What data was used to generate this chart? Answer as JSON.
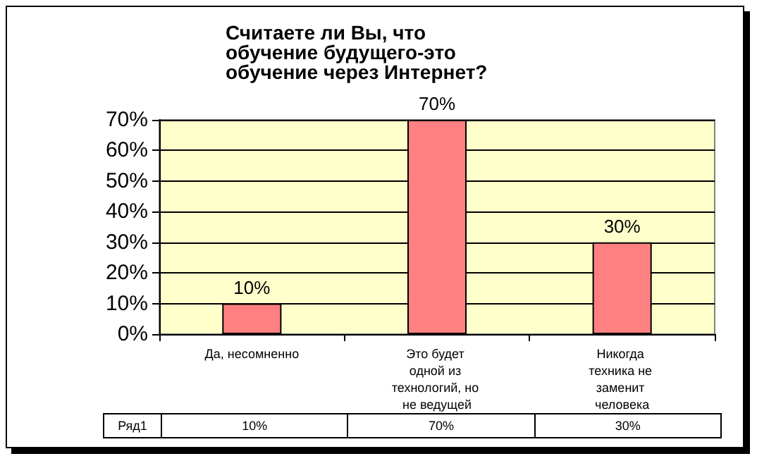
{
  "chart_data": {
    "type": "bar",
    "title": "Считаете ли Вы, что обучение будущего-это обучение через Интернет?",
    "categories": [
      "Да, несомненно",
      "Это будет одной из технологий, но не ведущей",
      "Никогда техника не заменит человека"
    ],
    "series": [
      {
        "name": "Ряд1",
        "color": "#ff8080",
        "values": [
          10,
          70,
          30
        ],
        "value_labels": [
          "10%",
          "70%",
          "30%"
        ]
      }
    ],
    "ylim": [
      0,
      70
    ],
    "yticks": [
      {
        "value": 0,
        "label": "0%"
      },
      {
        "value": 10,
        "label": "10%"
      },
      {
        "value": 20,
        "label": "20%"
      },
      {
        "value": 30,
        "label": "30%"
      },
      {
        "value": 40,
        "label": "40%"
      },
      {
        "value": 50,
        "label": "50%"
      },
      {
        "value": 60,
        "label": "60%"
      },
      {
        "value": 70,
        "label": "70%"
      }
    ],
    "grid": true,
    "legend": false
  }
}
